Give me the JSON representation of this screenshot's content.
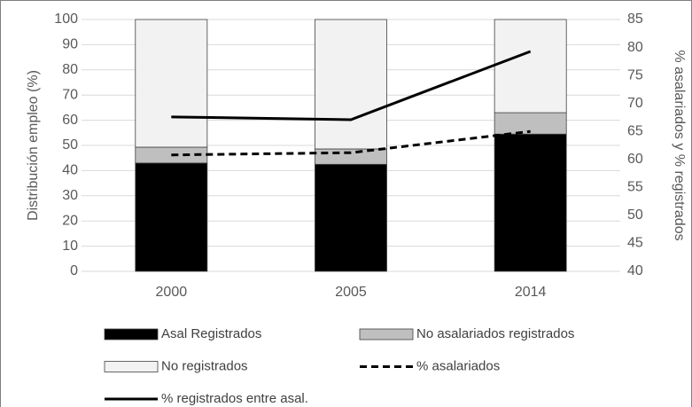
{
  "chart_data": {
    "type": "bar",
    "categories": [
      "2000",
      "2005",
      "2014"
    ],
    "y_label": "Distribución  empleo (%)",
    "y2_label": "% asalariados y % registrados",
    "ylim": [
      0,
      100
    ],
    "yticks": [
      0,
      10,
      20,
      30,
      40,
      50,
      60,
      70,
      80,
      90,
      100
    ],
    "y2lim": [
      40,
      85
    ],
    "y2ticks": [
      40,
      45,
      50,
      55,
      60,
      65,
      70,
      75,
      80,
      85
    ],
    "grid": true,
    "stacked": true,
    "legend": "bottom",
    "series": [
      {
        "name": "Asal Registrados",
        "type": "bar",
        "color": "#000000",
        "values": [
          43,
          42.5,
          54.5
        ]
      },
      {
        "name": "No asalariados registrados",
        "type": "bar",
        "color": "#bfbfbf",
        "values": [
          6.3,
          6.1,
          8.5
        ]
      },
      {
        "name": "No registrados",
        "type": "bar",
        "color": "#f2f2f2",
        "values": [
          50.7,
          51.4,
          37
        ]
      },
      {
        "name": "% asalariados",
        "type": "line",
        "axis": "y2",
        "color": "#000000",
        "dash": "dashed",
        "values": [
          60.8,
          61.2,
          65
        ]
      },
      {
        "name": "% registrados entre asal.",
        "type": "line",
        "axis": "y2",
        "color": "#000000",
        "dash": "solid",
        "values": [
          67.6,
          67.1,
          79.3
        ]
      }
    ]
  }
}
